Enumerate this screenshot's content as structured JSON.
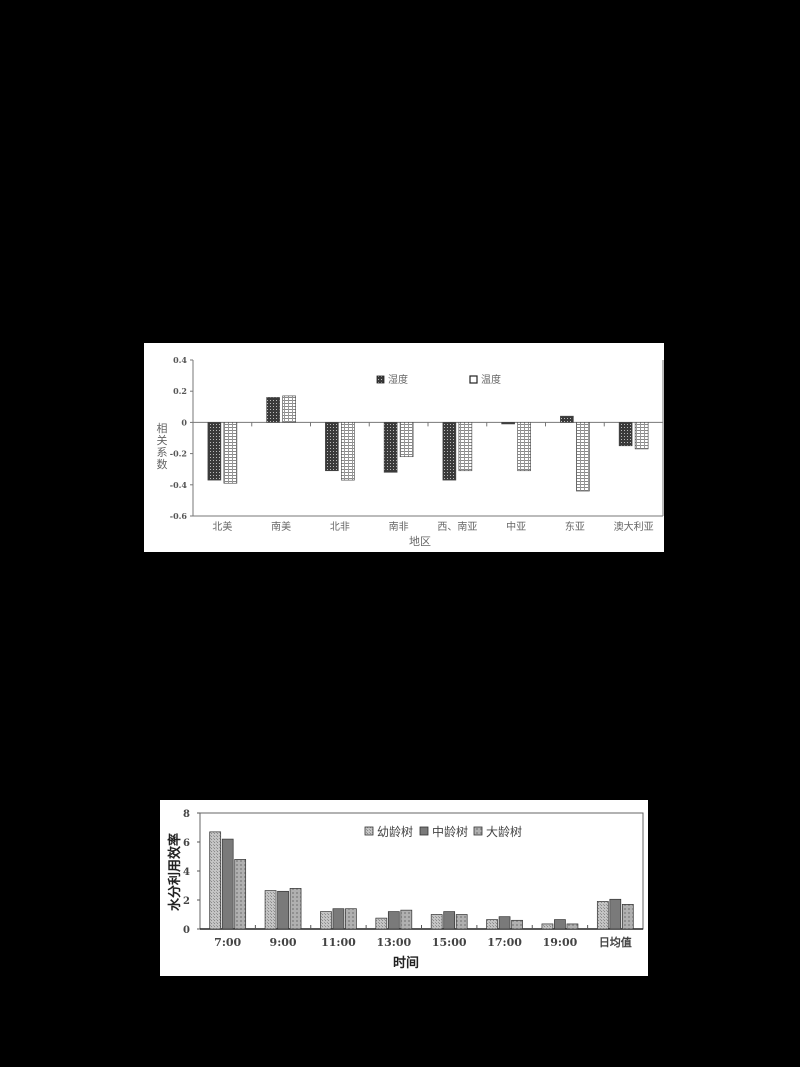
{
  "chart_data": [
    {
      "type": "bar",
      "title": "",
      "xlabel": "地区",
      "ylabel": "相关系数",
      "ylim": [
        -0.6,
        0.4
      ],
      "yticks": [
        "0.4",
        "0.2",
        "0",
        "-0.2",
        "-0.4",
        "-0.6"
      ],
      "ytick_values": [
        0.4,
        0.2,
        0,
        -0.2,
        -0.4,
        -0.6
      ],
      "grid": false,
      "legend_position": "top-center inside",
      "categories": [
        "北美",
        "南美",
        "北非",
        "南非",
        "西、南亚",
        "中亚",
        "东亚",
        "澳大利亚"
      ],
      "series": [
        {
          "name": "湿度",
          "values": [
            -0.37,
            0.16,
            -0.31,
            -0.32,
            -0.37,
            -0.01,
            0.04,
            -0.15
          ],
          "color": "#222222",
          "pattern": "dense-grid"
        },
        {
          "name": "温度",
          "values": [
            -0.39,
            0.17,
            -0.37,
            -0.22,
            -0.31,
            -0.31,
            -0.44,
            -0.17
          ],
          "color": "#ffffff",
          "pattern": "light-grid"
        }
      ]
    },
    {
      "type": "bar",
      "title": "",
      "xlabel": "时间",
      "ylabel": "水分利用效率",
      "ylim": [
        0,
        8
      ],
      "yticks": [
        "8",
        "6",
        "4",
        "2",
        "0"
      ],
      "ytick_values": [
        8,
        6,
        4,
        2,
        0
      ],
      "grid": false,
      "legend_position": "top-center inside",
      "categories": [
        "7:00",
        "9:00",
        "11:00",
        "13:00",
        "15:00",
        "17:00",
        "19:00",
        "日均值"
      ],
      "series": [
        {
          "name": "幼龄树",
          "values": [
            6.7,
            2.65,
            1.2,
            0.75,
            1.0,
            0.65,
            0.35,
            1.9
          ],
          "color": "#b5b5b5",
          "pattern": "stipple"
        },
        {
          "name": "中龄树",
          "values": [
            6.2,
            2.6,
            1.4,
            1.2,
            1.2,
            0.85,
            0.65,
            2.05
          ],
          "color": "#7a7a7a",
          "pattern": "solid"
        },
        {
          "name": "大龄树",
          "values": [
            4.8,
            2.8,
            1.4,
            1.3,
            1.0,
            0.6,
            0.35,
            1.7
          ],
          "color": "#a8a8a8",
          "pattern": "dots"
        }
      ]
    }
  ],
  "charts": {
    "c1": {
      "xlabel": "地区",
      "ylabel_chars": [
        "相",
        "关",
        "系",
        "数"
      ],
      "legend": [
        "湿度",
        "温度"
      ]
    },
    "c2": {
      "xlabel": "时间",
      "ylabel": "水分利用效率",
      "legend": [
        "幼龄树",
        "中龄树",
        "大龄树"
      ]
    }
  }
}
